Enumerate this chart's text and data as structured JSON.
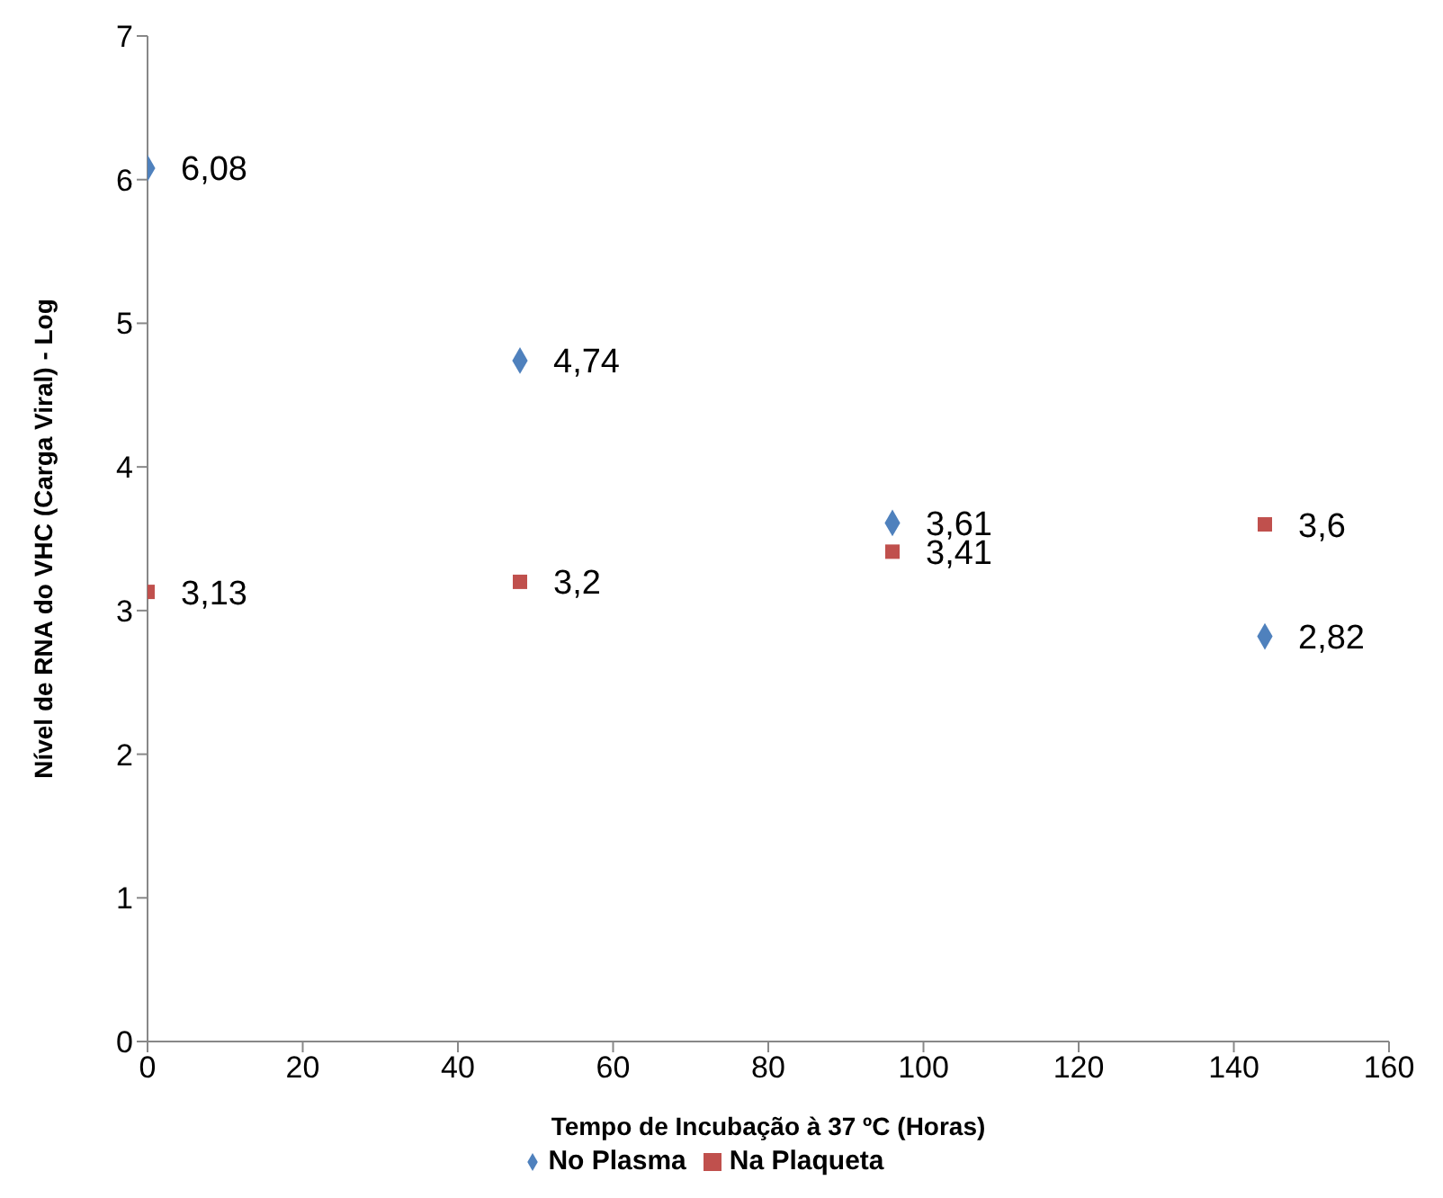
{
  "chart_data": {
    "type": "scatter",
    "xlabel": "Tempo de Incubação à 37 ºC (Horas)",
    "ylabel": "Nível de RNA do VHC (Carga Viral) - Log",
    "x": [
      0,
      48,
      96,
      144
    ],
    "series": [
      {
        "name": "No Plasma",
        "color": "#4f81bd",
        "marker": "diamond",
        "values": [
          6.08,
          4.74,
          3.61,
          2.82
        ],
        "value_labels": [
          "6,08",
          "4,74",
          "3,61",
          "2,82"
        ]
      },
      {
        "name": "Na Plaqueta",
        "color": "#c0504d",
        "marker": "square",
        "values": [
          3.13,
          3.2,
          3.41,
          3.6
        ],
        "value_labels": [
          "3,13",
          "3,2",
          "3,41",
          "3,6"
        ]
      }
    ],
    "xlim": [
      0,
      160
    ],
    "xticks": [
      0,
      20,
      40,
      60,
      80,
      100,
      120,
      140,
      160
    ],
    "ylim": [
      0,
      7
    ],
    "yticks": [
      0,
      1,
      2,
      3,
      4,
      5,
      6,
      7
    ],
    "grid": false,
    "legend": "bottom"
  }
}
